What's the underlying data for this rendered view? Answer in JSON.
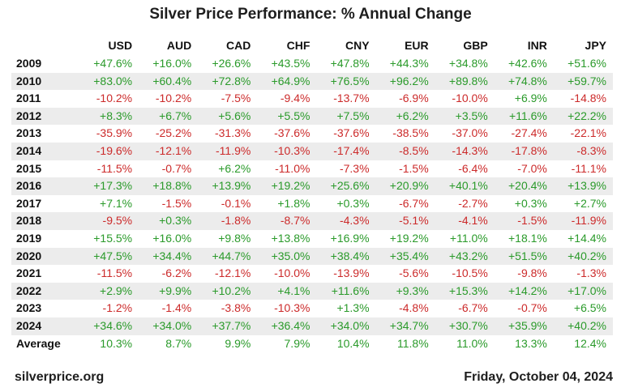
{
  "chart_data": {
    "type": "table",
    "title": "Silver Price Performance: % Annual Change",
    "columns": [
      "USD",
      "AUD",
      "CAD",
      "CHF",
      "CNY",
      "EUR",
      "GBP",
      "INR",
      "JPY"
    ],
    "rows": [
      {
        "label": "2009",
        "values": [
          "+47.6%",
          "+16.0%",
          "+26.6%",
          "+43.5%",
          "+47.8%",
          "+44.3%",
          "+34.8%",
          "+42.6%",
          "+51.6%"
        ]
      },
      {
        "label": "2010",
        "values": [
          "+83.0%",
          "+60.4%",
          "+72.8%",
          "+64.9%",
          "+76.5%",
          "+96.2%",
          "+89.8%",
          "+74.8%",
          "+59.7%"
        ]
      },
      {
        "label": "2011",
        "values": [
          "-10.2%",
          "-10.2%",
          "-7.5%",
          "-9.4%",
          "-13.7%",
          "-6.9%",
          "-10.0%",
          "+6.9%",
          "-14.8%"
        ]
      },
      {
        "label": "2012",
        "values": [
          "+8.3%",
          "+6.7%",
          "+5.6%",
          "+5.5%",
          "+7.5%",
          "+6.2%",
          "+3.5%",
          "+11.6%",
          "+22.2%"
        ]
      },
      {
        "label": "2013",
        "values": [
          "-35.9%",
          "-25.2%",
          "-31.3%",
          "-37.6%",
          "-37.6%",
          "-38.5%",
          "-37.0%",
          "-27.4%",
          "-22.1%"
        ]
      },
      {
        "label": "2014",
        "values": [
          "-19.6%",
          "-12.1%",
          "-11.9%",
          "-10.3%",
          "-17.4%",
          "-8.5%",
          "-14.3%",
          "-17.8%",
          "-8.3%"
        ]
      },
      {
        "label": "2015",
        "values": [
          "-11.5%",
          "-0.7%",
          "+6.2%",
          "-11.0%",
          "-7.3%",
          "-1.5%",
          "-6.4%",
          "-7.0%",
          "-11.1%"
        ]
      },
      {
        "label": "2016",
        "values": [
          "+17.3%",
          "+18.8%",
          "+13.9%",
          "+19.2%",
          "+25.6%",
          "+20.9%",
          "+40.1%",
          "+20.4%",
          "+13.9%"
        ]
      },
      {
        "label": "2017",
        "values": [
          "+7.1%",
          "-1.5%",
          "-0.1%",
          "+1.8%",
          "+0.3%",
          "-6.7%",
          "-2.7%",
          "+0.3%",
          "+2.7%"
        ]
      },
      {
        "label": "2018",
        "values": [
          "-9.5%",
          "+0.3%",
          "-1.8%",
          "-8.7%",
          "-4.3%",
          "-5.1%",
          "-4.1%",
          "-1.5%",
          "-11.9%"
        ]
      },
      {
        "label": "2019",
        "values": [
          "+15.5%",
          "+16.0%",
          "+9.8%",
          "+13.8%",
          "+16.9%",
          "+19.2%",
          "+11.0%",
          "+18.1%",
          "+14.4%"
        ]
      },
      {
        "label": "2020",
        "values": [
          "+47.5%",
          "+34.4%",
          "+44.7%",
          "+35.0%",
          "+38.4%",
          "+35.4%",
          "+43.2%",
          "+51.5%",
          "+40.2%"
        ]
      },
      {
        "label": "2021",
        "values": [
          "-11.5%",
          "-6.2%",
          "-12.1%",
          "-10.0%",
          "-13.9%",
          "-5.6%",
          "-10.5%",
          "-9.8%",
          "-1.3%"
        ]
      },
      {
        "label": "2022",
        "values": [
          "+2.9%",
          "+9.9%",
          "+10.2%",
          "+4.1%",
          "+11.6%",
          "+9.3%",
          "+15.3%",
          "+14.2%",
          "+17.0%"
        ]
      },
      {
        "label": "2023",
        "values": [
          "-1.2%",
          "-1.4%",
          "-3.8%",
          "-10.3%",
          "+1.3%",
          "-4.8%",
          "-6.7%",
          "-0.7%",
          "+6.5%"
        ]
      },
      {
        "label": "2024",
        "values": [
          "+34.6%",
          "+34.0%",
          "+37.7%",
          "+36.4%",
          "+34.0%",
          "+34.7%",
          "+30.7%",
          "+35.9%",
          "+40.2%"
        ]
      },
      {
        "label": "Average",
        "values": [
          "10.3%",
          "8.7%",
          "9.9%",
          "7.9%",
          "10.4%",
          "11.8%",
          "11.0%",
          "13.3%",
          "12.4%"
        ]
      }
    ]
  },
  "footer": {
    "source": "silverprice.org",
    "date": "Friday, October 04, 2024"
  },
  "colors": {
    "positive": "#2a9a2a",
    "negative": "#cc2a2a",
    "stripe": "#ececec"
  }
}
